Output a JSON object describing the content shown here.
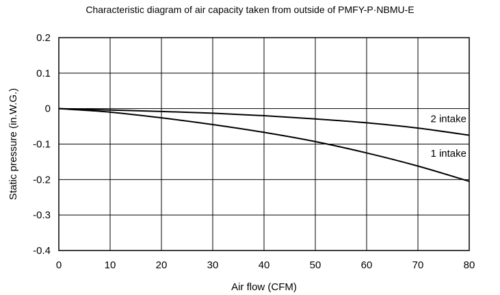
{
  "chart_data": {
    "type": "line",
    "title": "Characteristic diagram of air capacity taken from outside of PMFY-P·NBMU-E",
    "xlabel": "Air flow (CFM)",
    "ylabel": "Static pressure (in.W.G.)",
    "xlim": [
      0,
      80
    ],
    "ylim": [
      -0.4,
      0.2
    ],
    "x_ticks": [
      "0",
      "10",
      "20",
      "30",
      "40",
      "50",
      "60",
      "70",
      "80"
    ],
    "y_ticks": [
      "0.2",
      "0.1",
      "0",
      "-0.1",
      "-0.2",
      "-0.3",
      "-0.4"
    ],
    "grid": true,
    "series": [
      {
        "name": "2 intake",
        "x": [
          0,
          10,
          20,
          30,
          40,
          50,
          60,
          70,
          80
        ],
        "values": [
          0,
          -0.004,
          -0.008,
          -0.013,
          -0.02,
          -0.029,
          -0.04,
          -0.055,
          -0.075
        ]
      },
      {
        "name": "1 intake",
        "x": [
          0,
          10,
          20,
          30,
          40,
          50,
          60,
          70,
          80
        ],
        "values": [
          0,
          -0.01,
          -0.026,
          -0.045,
          -0.067,
          -0.093,
          -0.125,
          -0.162,
          -0.205
        ]
      }
    ],
    "line_color": "#000000"
  }
}
